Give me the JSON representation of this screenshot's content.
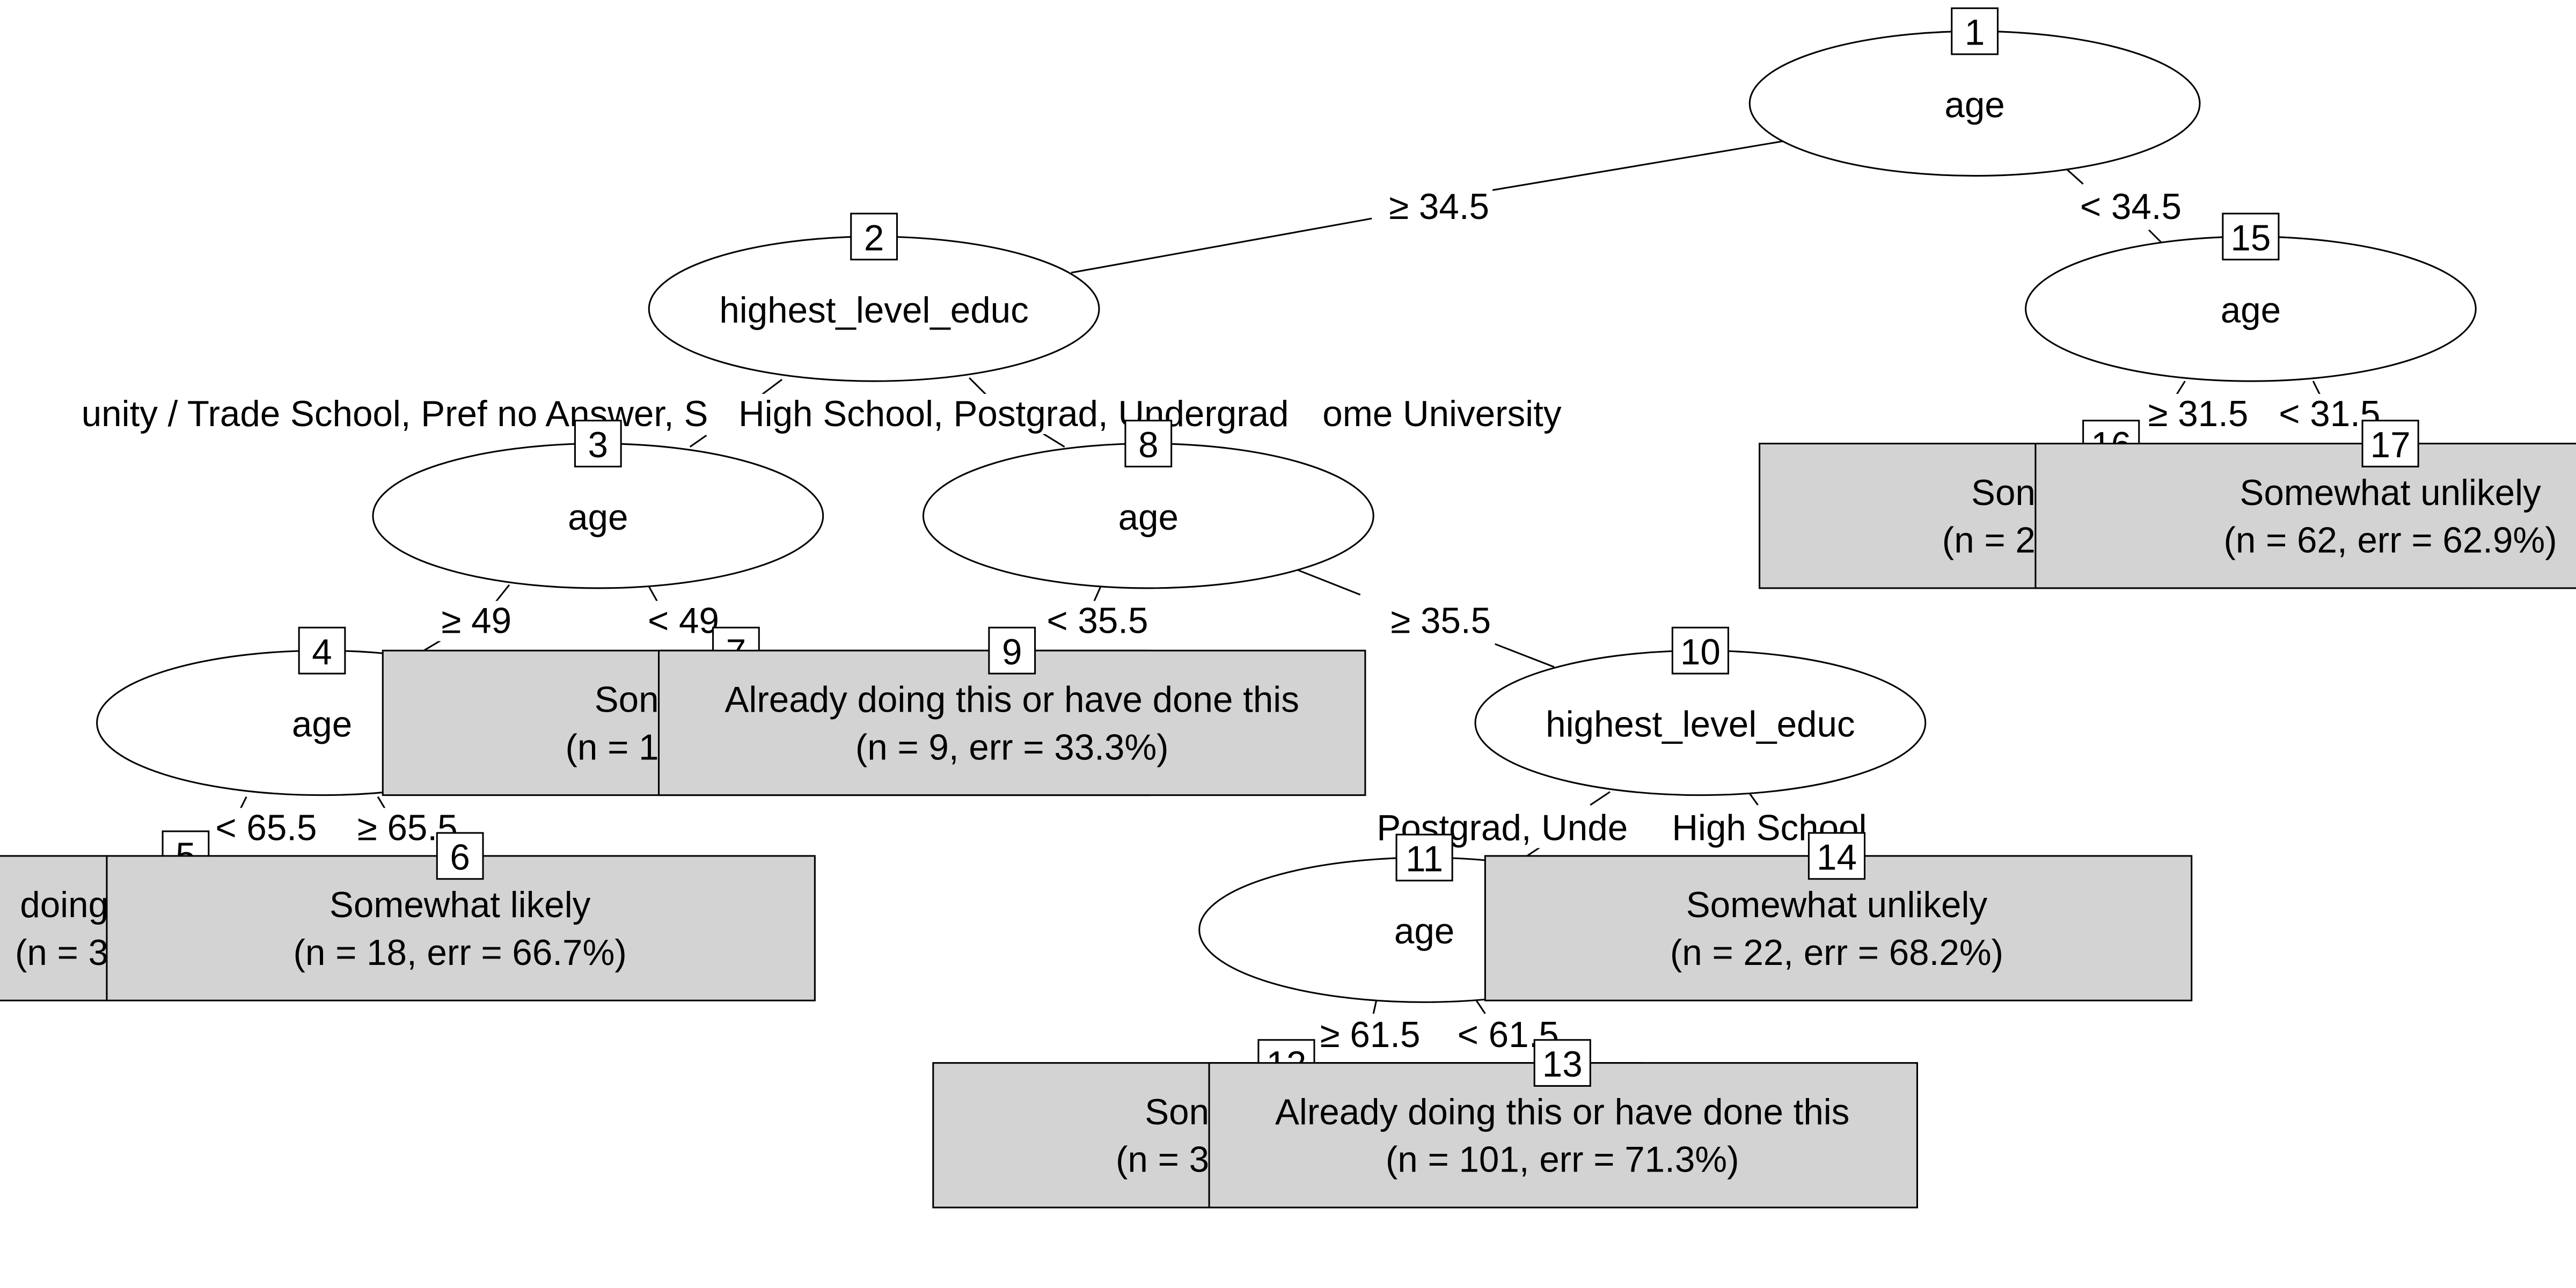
{
  "nodes": [
    {
      "id": "1",
      "split": "age"
    },
    {
      "id": "2",
      "split": "highest_level_educ"
    },
    {
      "id": "3",
      "split": "age"
    },
    {
      "id": "4",
      "split": "age"
    },
    {
      "id": "5",
      "lines": [
        "doing",
        "(n = 3"
      ]
    },
    {
      "id": "6",
      "lines": [
        "Somewhat likely",
        "(n = 18, err = 66.7%)"
      ]
    },
    {
      "id": "7",
      "lines": [
        "Son",
        "(n = 1"
      ]
    },
    {
      "id": "8",
      "split": "age"
    },
    {
      "id": "9",
      "lines": [
        "Already doing this or have done this",
        "(n = 9, err = 33.3%)"
      ]
    },
    {
      "id": "10",
      "split": "highest_level_educ"
    },
    {
      "id": "11",
      "split": "age"
    },
    {
      "id": "12",
      "lines": [
        "Son",
        "(n = 3"
      ]
    },
    {
      "id": "13",
      "lines": [
        "Already doing this or have done this",
        "(n = 101, err = 71.3%)"
      ]
    },
    {
      "id": "14",
      "lines": [
        "Somewhat unlikely",
        "(n = 22, err = 68.2%)"
      ]
    },
    {
      "id": "15",
      "split": "age"
    },
    {
      "id": "16",
      "lines": [
        "Son",
        "(n = 2"
      ]
    },
    {
      "id": "17",
      "lines": [
        "Somewhat unlikely",
        "(n = 62, err = 62.9%)"
      ]
    }
  ],
  "edges": [
    {
      "label": [
        "≥ 34.5"
      ]
    },
    {
      "label": [
        "< 34.5"
      ]
    },
    {
      "label": [
        "unity / Trade School, Pref no Answer, S",
        "ome University"
      ]
    },
    {
      "label": [
        "High School, Postgrad, Undergrad"
      ]
    },
    {
      "label": [
        "≥ 31.5"
      ]
    },
    {
      "label": [
        "< 31.5"
      ]
    },
    {
      "label": [
        "≥ 49"
      ]
    },
    {
      "label": [
        "< 49"
      ]
    },
    {
      "label": [
        "< 35.5"
      ]
    },
    {
      "label": [
        "≥ 35.5"
      ]
    },
    {
      "label": [
        "< 65.5"
      ]
    },
    {
      "label": [
        "≥ 65.5"
      ]
    },
    {
      "label": [
        "Postgrad, Unde"
      ]
    },
    {
      "label": [
        "High School"
      ]
    },
    {
      "label": [
        "≥ 61.5"
      ]
    },
    {
      "label": [
        "< 61.5"
      ]
    }
  ]
}
